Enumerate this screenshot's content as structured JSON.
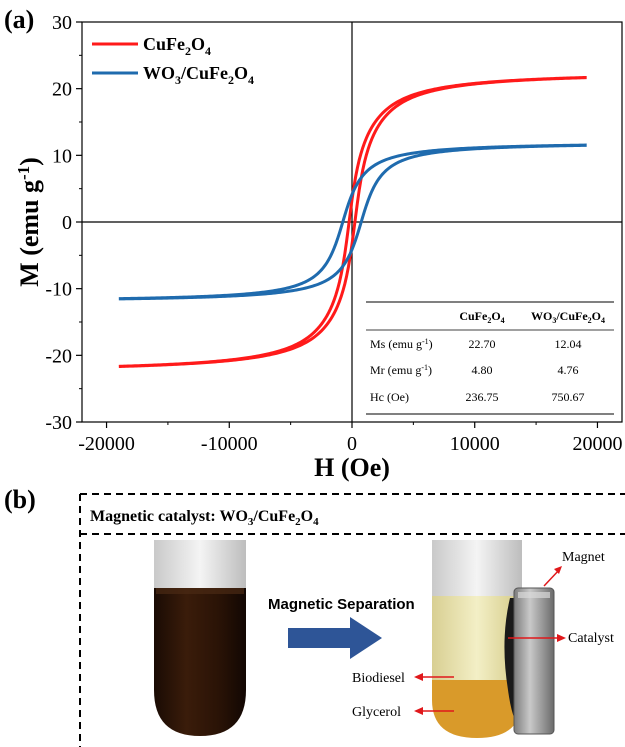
{
  "panel_a_label": "(a)",
  "panel_b_label": "(b)",
  "chart_data": {
    "type": "line",
    "xlabel": "H (Oe)",
    "ylabel": "M (emu g-1)",
    "ylabel_parts": {
      "main": "M (emu g",
      "sup": "-1",
      "end": ")"
    },
    "xlim": [
      -22000,
      22000
    ],
    "ylim": [
      -30,
      30
    ],
    "xticks": [
      -20000,
      -10000,
      0,
      10000,
      20000
    ],
    "yticks": [
      -30,
      -20,
      -10,
      0,
      10,
      20,
      30
    ],
    "series": [
      {
        "name": "CuFe2O4",
        "label_parts": [
          "CuFe",
          "2",
          "O",
          "4"
        ],
        "color": "#ff1a1a",
        "ms": 22.7,
        "mr": 4.8,
        "hc": 236.75,
        "x_range": [
          -19000,
          19000
        ]
      },
      {
        "name": "WO3/CuFe2O4",
        "label_parts": [
          "WO",
          "3",
          "/CuFe",
          "2",
          "O",
          "4"
        ],
        "color": "#1f6bae",
        "ms": 12.04,
        "mr": 4.76,
        "hc": 750.67,
        "x_range": [
          -19000,
          19000
        ]
      }
    ],
    "inset_table": {
      "columns": [
        {
          "parts": [
            "CuFe",
            "2",
            "O",
            "4"
          ]
        },
        {
          "parts": [
            "WO",
            "3",
            "/CuFe",
            "2",
            "O",
            "4"
          ]
        }
      ],
      "rows": [
        {
          "label": "Ms (emu g",
          "sup": "-1",
          "end": ")",
          "values": [
            "22.70",
            "12.04"
          ]
        },
        {
          "label": "Mr (emu g",
          "sup": "-1",
          "end": ")",
          "values": [
            "4.80",
            "4.76"
          ]
        },
        {
          "label": "Hc (Oe)",
          "sup": "",
          "end": "",
          "values": [
            "236.75",
            "750.67"
          ]
        }
      ]
    }
  },
  "panel_b": {
    "catalyst_title": "Magnetic catalyst: WO",
    "catalyst_sub1": "3",
    "catalyst_mid": "/CuFe",
    "catalyst_sub2": "2",
    "catalyst_o": "O",
    "catalyst_sub3": "4",
    "separation_label": "Magnetic Separation",
    "labels": {
      "magnet": "Magnet",
      "catalyst": "Catalyst",
      "biodiesel": "Biodiesel",
      "glycerol": "Glycerol"
    },
    "arrow_color": "#e0181b",
    "separation_arrow_color": "#2e5597"
  }
}
